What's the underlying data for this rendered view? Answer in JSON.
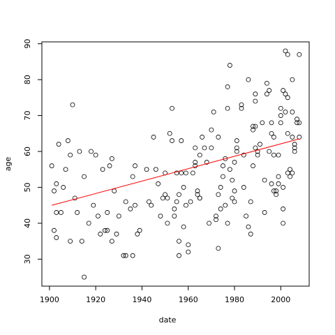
{
  "chart_data": {
    "type": "scatter",
    "x_label": "date",
    "y_label": "age",
    "xlim": [
      1896.72,
      2012.28
    ],
    "ylim": [
      22.48,
      90.52
    ],
    "xticks": [
      1900,
      1920,
      1940,
      1960,
      1980,
      2000
    ],
    "yticks": [
      30,
      40,
      50,
      60,
      70,
      80,
      90
    ],
    "point_color": "#000000",
    "x": [
      1901,
      1902,
      1902,
      1903,
      1903,
      1903,
      1904,
      1905,
      1906,
      1907,
      1908,
      1909,
      1909,
      1910,
      1911,
      1912,
      1913,
      1914,
      1915,
      1915,
      1917,
      1918,
      1919,
      1920,
      1921,
      1922,
      1923,
      1924,
      1925,
      1925,
      1926,
      1927,
      1927,
      1928,
      1929,
      1930,
      1932,
      1933,
      1933,
      1935,
      1936,
      1936,
      1937,
      1937,
      1938,
      1939,
      1942,
      1943,
      1944,
      1945,
      1946,
      1947,
      1948,
      1949,
      1950,
      1950,
      1951,
      1951,
      1952,
      1953,
      1953,
      1954,
      1954,
      1955,
      1955,
      1956,
      1956,
      1956,
      1957,
      1957,
      1958,
      1958,
      1959,
      1959,
      1960,
      1960,
      1961,
      1962,
      1963,
      1963,
      1963,
      1964,
      1964,
      1965,
      1965,
      1965,
      1966,
      1967,
      1968,
      1969,
      1970,
      1970,
      1971,
      1972,
      1972,
      1973,
      1973,
      1973,
      1974,
      1974,
      1975,
      1975,
      1976,
      1976,
      1977,
      1977,
      1977,
      1978,
      1978,
      1979,
      1979,
      1980,
      1980,
      1980,
      1981,
      1981,
      1981,
      1983,
      1983,
      1984,
      1984,
      1985,
      1986,
      1986,
      1987,
      1987,
      1988,
      1988,
      1988,
      1989,
      1989,
      1989,
      1989,
      1990,
      1990,
      1991,
      1992,
      1993,
      1993,
      1994,
      1994,
      1995,
      1995,
      1996,
      1996,
      1996,
      1997,
      1997,
      1997,
      1998,
      1998,
      1999,
      1999,
      1999,
      2000,
      2000,
      2000,
      2001,
      2001,
      2001,
      2001,
      2002,
      2002,
      2002,
      2003,
      2003,
      2003,
      2003,
      2004,
      2004,
      2005,
      2005,
      2005,
      2005,
      2006,
      2006,
      2006,
      2007,
      2007,
      2008,
      2008,
      2008
    ],
    "y": [
      56,
      49,
      38,
      36,
      51,
      43,
      62,
      43,
      50,
      55,
      63,
      59,
      35,
      73,
      47,
      43,
      60,
      35,
      53,
      25,
      40,
      60,
      45,
      59,
      42,
      37,
      55,
      38,
      38,
      43,
      56,
      58,
      35,
      49,
      37,
      42,
      31,
      31,
      46,
      44,
      31,
      53,
      56,
      45,
      37,
      38,
      55,
      46,
      45,
      64,
      55,
      51,
      42,
      47,
      48,
      54,
      40,
      47,
      65,
      72,
      63,
      44,
      42,
      54,
      46,
      48,
      31,
      35,
      54,
      63,
      50,
      39,
      54,
      45,
      34,
      32,
      46,
      54,
      57,
      56,
      61,
      49,
      48,
      47,
      47,
      59,
      64,
      61,
      57,
      40,
      61,
      66,
      71,
      42,
      41,
      33,
      48,
      64,
      44,
      50,
      56,
      53,
      45,
      58,
      40,
      72,
      78,
      84,
      55,
      52,
      47,
      46,
      49,
      57,
      61,
      60,
      63,
      72,
      73,
      50,
      59,
      42,
      39,
      80,
      37,
      46,
      56,
      66,
      67,
      61,
      67,
      74,
      76,
      60,
      59,
      62,
      68,
      43,
      52,
      76,
      79,
      60,
      77,
      68,
      65,
      51,
      59,
      64,
      49,
      49,
      48,
      59,
      51,
      53,
      68,
      70,
      72,
      44,
      40,
      50,
      77,
      71,
      88,
      76,
      54,
      75,
      87,
      65,
      55,
      53,
      80,
      71,
      64,
      54,
      62,
      60,
      61,
      69,
      68,
      64,
      68,
      87
    ],
    "fit": {
      "color": "#ff0000",
      "x": [
        1901,
        2008
      ],
      "y": [
        45,
        63.5
      ]
    }
  }
}
